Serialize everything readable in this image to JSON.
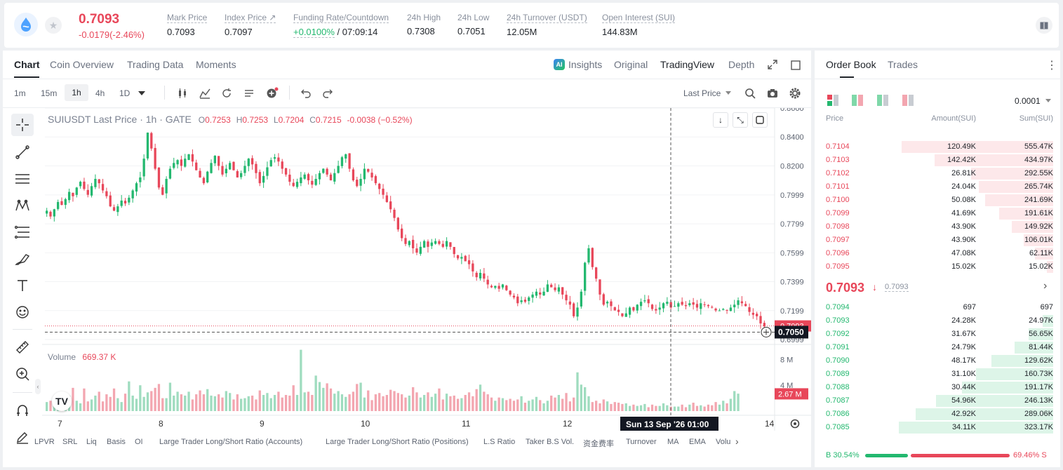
{
  "ticker": {
    "price": "0.7093",
    "change": "-0.0179(-2.46%)",
    "stats": [
      {
        "label": "Mark Price",
        "value": "0.7093"
      },
      {
        "label": "Index Price ↗",
        "value": "0.7097"
      },
      {
        "label": "Funding Rate/Countdown",
        "value_green": "+0.0100%",
        "value": "/ 07:09:14"
      },
      {
        "label": "24h High",
        "value": "0.7308"
      },
      {
        "label": "24h Low",
        "value": "0.7051"
      },
      {
        "label": "24h Turnover (USDT)",
        "value": "12.05M"
      },
      {
        "label": "Open Interest (SUI)",
        "value": "144.83M"
      }
    ]
  },
  "chart_tabs": [
    "Chart",
    "Coin Overview",
    "Trading Data",
    "Moments"
  ],
  "view_tabs": [
    "Insights",
    "Original",
    "TradingView",
    "Depth"
  ],
  "timeframes": [
    "1m",
    "15m",
    "1h",
    "4h",
    "1D"
  ],
  "price_source": "Last Price",
  "legend": {
    "title": "SUIUSDT Last Price · 1h · GATE",
    "o": "0.7253",
    "h": "0.7253",
    "l": "0.7204",
    "c": "0.7215",
    "chg": "-0.0038 (−0.52%)"
  },
  "volume_label": "Volume",
  "volume_value": "669.37 K",
  "price_axis": [
    "0.8600",
    "0.8400",
    "0.8200",
    "0.7999",
    "0.7799",
    "0.7599",
    "0.7399",
    "0.7199",
    "0.6999"
  ],
  "volume_axis": [
    "8 M",
    "4 M"
  ],
  "last_price_tag": "0.7093",
  "crosshair_price": "0.7050",
  "volume_tag": "2.67 M",
  "time_axis": [
    "7",
    "8",
    "9",
    "10",
    "11",
    "12",
    "13",
    "14"
  ],
  "crosshair_time": "Sun 13 Sep '26   01:00",
  "indicators": [
    "LPVR",
    "SRL",
    "Liq",
    "Basis",
    "OI",
    "Large Trader Long/Short Ratio (Accounts)",
    "Large Trader Long/Short Ratio (Positions)",
    "L.S Ratio",
    "Taker B.S Vol.",
    "资金费率",
    "Turnover",
    "MA",
    "EMA",
    "Volu"
  ],
  "book_tabs": [
    "Order Book",
    "Trades"
  ],
  "book_precision": "0.0001",
  "book_headers": [
    "Price",
    "Amount(SUI)",
    "Sum(SUI)"
  ],
  "asks": [
    {
      "price": "0.7104",
      "amount": "120.49K",
      "sum": "555.47K",
      "depth": 0.98
    },
    {
      "price": "0.7103",
      "amount": "142.42K",
      "sum": "434.97K",
      "depth": 0.77
    },
    {
      "price": "0.7102",
      "amount": "26.81K",
      "sum": "292.55K",
      "depth": 0.53
    },
    {
      "price": "0.7101",
      "amount": "24.04K",
      "sum": "265.74K",
      "depth": 0.48
    },
    {
      "price": "0.7100",
      "amount": "50.08K",
      "sum": "241.69K",
      "depth": 0.44
    },
    {
      "price": "0.7099",
      "amount": "41.69K",
      "sum": "191.61K",
      "depth": 0.35
    },
    {
      "price": "0.7098",
      "amount": "43.90K",
      "sum": "149.92K",
      "depth": 0.27
    },
    {
      "price": "0.7097",
      "amount": "43.90K",
      "sum": "106.01K",
      "depth": 0.19
    },
    {
      "price": "0.7096",
      "amount": "47.08K",
      "sum": "62.11K",
      "depth": 0.12
    },
    {
      "price": "0.7095",
      "amount": "15.02K",
      "sum": "15.02K",
      "depth": 0.04
    }
  ],
  "mid_price": "0.7093",
  "mid_mark": "0.7093",
  "bids": [
    {
      "price": "0.7094",
      "amount": "697",
      "sum": "697",
      "depth": 0.0
    },
    {
      "price": "0.7093",
      "amount": "24.28K",
      "sum": "24.97K",
      "depth": 0.07
    },
    {
      "price": "0.7092",
      "amount": "31.67K",
      "sum": "56.65K",
      "depth": 0.16
    },
    {
      "price": "0.7091",
      "amount": "24.79K",
      "sum": "81.44K",
      "depth": 0.25
    },
    {
      "price": "0.7090",
      "amount": "48.17K",
      "sum": "129.62K",
      "depth": 0.4
    },
    {
      "price": "0.7089",
      "amount": "31.10K",
      "sum": "160.73K",
      "depth": 0.5
    },
    {
      "price": "0.7088",
      "amount": "30.44K",
      "sum": "191.17K",
      "depth": 0.59
    },
    {
      "price": "0.7087",
      "amount": "54.96K",
      "sum": "246.13K",
      "depth": 0.76
    },
    {
      "price": "0.7086",
      "amount": "42.92K",
      "sum": "289.06K",
      "depth": 0.89
    },
    {
      "price": "0.7085",
      "amount": "34.11K",
      "sum": "323.17K",
      "depth": 1.0
    }
  ],
  "ratio": {
    "buy": "B 30.54%",
    "sell": "69.46% S",
    "buy_fraction": 0.3054
  },
  "colors": {
    "up": "#23b86f",
    "down": "#e8475a",
    "accent": "#1677ff"
  },
  "chart_data": {
    "type": "candlestick",
    "title": "SUIUSDT Last Price · 1h · GATE",
    "ylim": [
      0.6999,
      0.86
    ],
    "x_ticks": [
      "7",
      "8",
      "9",
      "10",
      "11",
      "12",
      "13",
      "14"
    ],
    "series_close": [
      0.789,
      0.785,
      0.79,
      0.795,
      0.793,
      0.797,
      0.802,
      0.799,
      0.805,
      0.809,
      0.804,
      0.8,
      0.806,
      0.811,
      0.808,
      0.803,
      0.799,
      0.792,
      0.789,
      0.792,
      0.796,
      0.794,
      0.798,
      0.803,
      0.808,
      0.812,
      0.825,
      0.843,
      0.832,
      0.818,
      0.805,
      0.8,
      0.811,
      0.818,
      0.822,
      0.824,
      0.82,
      0.825,
      0.828,
      0.823,
      0.817,
      0.812,
      0.808,
      0.816,
      0.822,
      0.827,
      0.82,
      0.814,
      0.818,
      0.822,
      0.817,
      0.812,
      0.815,
      0.82,
      0.825,
      0.821,
      0.815,
      0.808,
      0.813,
      0.819,
      0.824,
      0.826,
      0.823,
      0.818,
      0.814,
      0.809,
      0.806,
      0.809,
      0.812,
      0.814,
      0.81,
      0.807,
      0.811,
      0.815,
      0.818,
      0.814,
      0.81,
      0.815,
      0.82,
      0.826,
      0.828,
      0.818,
      0.81,
      0.806,
      0.811,
      0.818,
      0.816,
      0.812,
      0.808,
      0.804,
      0.8,
      0.795,
      0.79,
      0.784,
      0.776,
      0.77,
      0.766,
      0.768,
      0.763,
      0.76,
      0.764,
      0.768,
      0.764,
      0.767,
      0.768,
      0.766,
      0.764,
      0.768,
      0.764,
      0.759,
      0.756,
      0.757,
      0.754,
      0.752,
      0.747,
      0.743,
      0.746,
      0.742,
      0.738,
      0.736,
      0.737,
      0.735,
      0.738,
      0.734,
      0.731,
      0.729,
      0.725,
      0.727,
      0.726,
      0.729,
      0.731,
      0.733,
      0.731,
      0.733,
      0.738,
      0.736,
      0.734,
      0.736,
      0.731,
      0.727,
      0.724,
      0.716,
      0.722,
      0.733,
      0.753,
      0.763,
      0.75,
      0.742,
      0.731,
      0.724,
      0.726,
      0.723,
      0.72,
      0.719,
      0.716,
      0.718,
      0.722,
      0.72,
      0.724,
      0.726,
      0.727,
      0.725,
      0.721,
      0.72,
      0.722,
      0.725,
      0.726,
      0.722,
      0.723,
      0.725,
      0.724,
      0.723,
      0.725,
      0.724,
      0.722,
      0.725,
      0.724,
      0.723,
      0.722,
      0.72,
      0.72,
      0.721,
      0.72,
      0.722,
      0.724,
      0.727,
      0.725,
      0.723,
      0.719,
      0.717,
      0.716,
      0.711,
      0.709
    ],
    "series_volume": [
      1.4,
      1.6,
      1.2,
      1.0,
      1.8,
      2.2,
      2.4,
      3.6,
      1.6,
      1.2,
      3.5,
      1.5,
      1.8,
      2.4,
      3.0,
      1.5,
      2.6,
      2.2,
      3.5,
      2.0,
      1.4,
      2.7,
      4.6,
      2.4,
      1.9,
      4.0,
      2.2,
      2.9,
      3.1,
      3.6,
      4.2,
      2.0,
      2.0,
      4.4,
      2.4,
      3.0,
      2.6,
      2.4,
      3.0,
      1.8,
      2.6,
      3.2,
      2.6,
      3.4,
      2.4,
      2.3,
      2.6,
      2.1,
      3.1,
      2.8,
      1.8,
      2.6,
      1.9,
      2.0,
      2.3,
      2.4,
      1.8,
      3.2,
      2.5,
      2.8,
      2.0,
      2.5,
      3.0,
      2.1,
      2.5,
      2.4,
      4.0,
      2.5,
      9.5,
      2.9,
      3.0,
      2.5,
      5.5,
      4.5,
      3.6,
      4.3,
      3.5,
      2.7,
      3.1,
      2.6,
      2.2,
      2.6,
      3.0,
      4.2,
      4.4,
      2.1,
      3.2,
      1.7,
      2.6,
      2.8,
      2.3,
      2.5,
      3.3,
      3.1,
      2.8,
      2.6,
      2.1,
      2.4,
      3.7,
      2.9,
      2.1,
      2.5,
      2.9,
      2.2,
      2.7,
      3.5,
      1.8,
      2.7,
      2.3,
      2.4,
      1.9,
      2.0,
      2.5,
      2.9,
      2.3,
      3.4,
      4.1,
      3.0,
      2.6,
      2.1,
      1.6,
      2.1,
      2.0,
      1.7,
      1.9,
      1.6,
      1.8,
      2.3,
      1.3,
      1.6,
      1.8,
      2.2,
      1.7,
      1.2,
      1.6,
      2.4,
      2.1,
      2.5,
      1.9,
      2.8,
      1.5,
      2.1,
      6.0,
      4.1,
      3.7,
      2.3,
      1.4,
      1.6,
      1.2,
      1.8,
      1.5,
      1.1,
      1.4,
      1.3,
      1.1,
      1.2,
      0.8,
      1.0,
      0.8,
      0.9,
      1.1,
      0.6,
      1.0,
      0.8,
      0.8,
      1.2,
      0.9,
      0.7,
      0.7,
      0.7,
      1.0,
      0.6,
      1.0,
      1.3,
      0.8,
      0.9,
      0.7,
      1.0,
      0.9,
      1.4,
      1.0,
      1.6,
      1.2,
      1.9,
      3.1,
      2.7
    ]
  }
}
